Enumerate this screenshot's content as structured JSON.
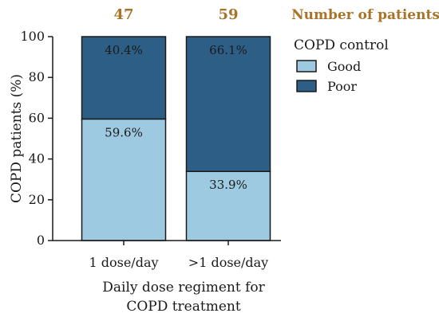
{
  "chart_data": {
    "type": "bar",
    "stacked": true,
    "categories": [
      "1 dose/day",
      ">1 dose/day"
    ],
    "series": [
      {
        "name": "Good",
        "values": [
          59.6,
          33.9
        ],
        "labels": [
          "59.6%",
          "33.9%"
        ],
        "color": "#9ecae1"
      },
      {
        "name": "Poor",
        "values": [
          40.4,
          66.1
        ],
        "labels": [
          "40.4%",
          "66.1%"
        ],
        "color": "#2d5f86"
      }
    ],
    "counts": [
      "47",
      "59"
    ],
    "counts_label": "Number of patients",
    "counts_color": "#a8742a",
    "xlabel": "Daily dose regiment for COPD treatment",
    "xlabel_lines": [
      "Daily dose regiment for",
      "COPD treatment"
    ],
    "ylabel": "COPD patients (%)",
    "ylim": [
      0,
      100
    ],
    "yticks": [
      0,
      20,
      40,
      60,
      80,
      100
    ],
    "legend_title": "COPD control",
    "legend_position": "right",
    "grid": false
  }
}
